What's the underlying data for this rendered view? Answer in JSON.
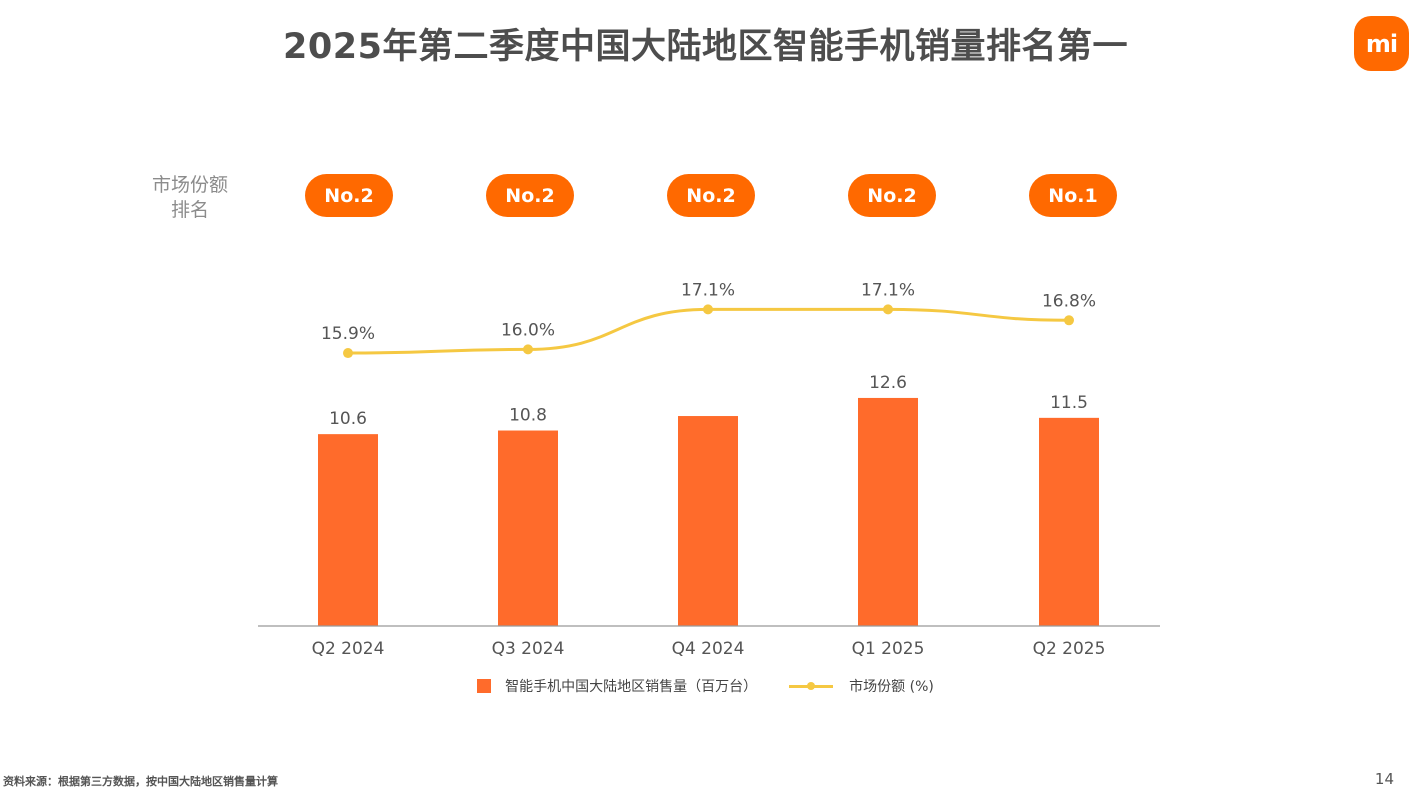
{
  "title": "2025年第二季度中国大陆地区智能手机销量排名第一",
  "logo_text": "mi",
  "rank_label_line1": "市场份额",
  "rank_label_line2": "排名",
  "ranks": [
    "No.2",
    "No.2",
    "No.2",
    "No.2",
    "No.1"
  ],
  "legend": {
    "bar_label": "智能手机中国大陆地区销售量（百万台）",
    "line_label": "市场份额 (%)"
  },
  "footer": {
    "source": "资料来源：根据第三方数据，按中国大陆地区销售量计算",
    "page": "14"
  },
  "colors": {
    "bar": "#ff6b2b",
    "line": "#f5c842",
    "badge": "#ff6900",
    "axis": "#999999"
  },
  "chart_data": {
    "type": "bar",
    "categories": [
      "Q2 2024",
      "Q3 2024",
      "Q4 2024",
      "Q1 2025",
      "Q2 2025"
    ],
    "series": [
      {
        "name": "智能手机中国大陆地区销售量（百万台）",
        "type": "bar",
        "values": [
          10.6,
          10.8,
          11.6,
          12.6,
          11.5
        ],
        "labels": [
          "10.6",
          "10.8",
          "",
          "12.6",
          "11.5"
        ]
      },
      {
        "name": "市场份额 (%)",
        "type": "line",
        "values": [
          15.9,
          16.0,
          17.1,
          17.1,
          16.8
        ],
        "labels": [
          "15.9%",
          "16.0%",
          "17.1%",
          "17.1%",
          "16.8%"
        ]
      }
    ],
    "y_left_lim": [
      0,
      20
    ],
    "y_right_lim": [
      0,
      20
    ],
    "grid": false,
    "legend_position": "bottom-center"
  }
}
